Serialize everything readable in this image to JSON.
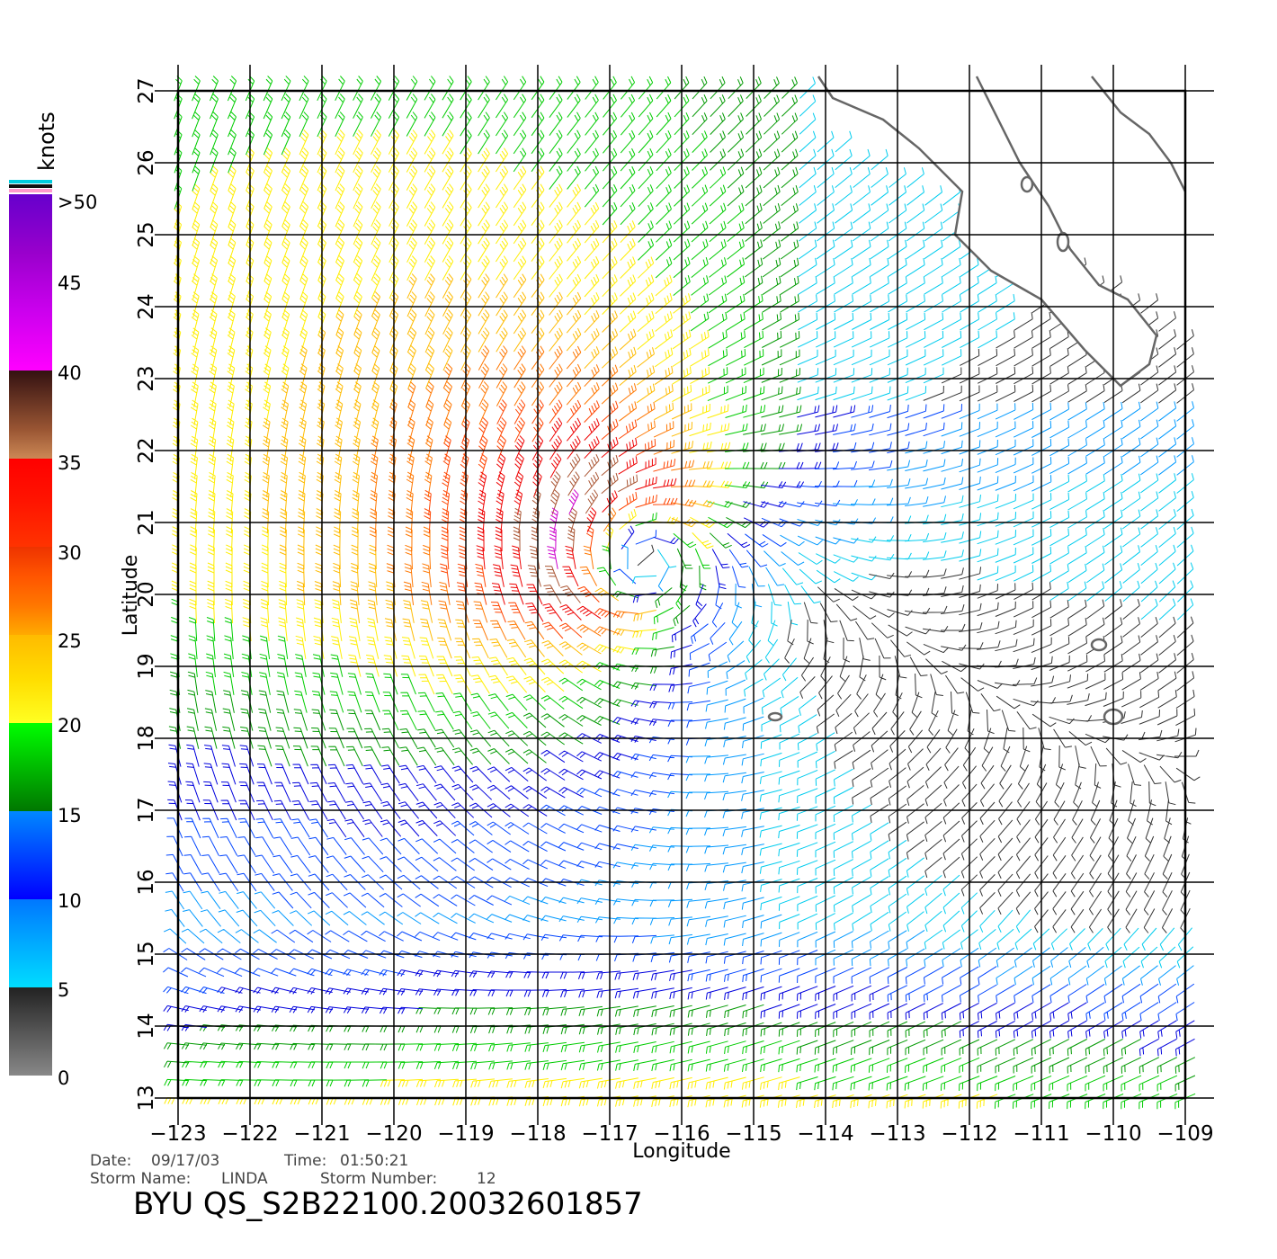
{
  "colorbar": {
    "unit_label": "knots",
    "labels": [
      ">50",
      "45",
      "40",
      "35",
      "30",
      "25",
      "20",
      "15",
      "10",
      "5",
      "0"
    ],
    "bands": [
      {
        "from": 40,
        "to": 50,
        "colors": [
          "#ff00ff",
          "#cc00ee",
          "#9900cc",
          "#6600cc"
        ]
      },
      {
        "from": 35,
        "to": 40,
        "colors": [
          "#cc8855",
          "#995533",
          "#663322",
          "#331111"
        ]
      },
      {
        "from": 30,
        "to": 35,
        "colors": [
          "#ff3300",
          "#ff1500",
          "#ff0000"
        ]
      },
      {
        "from": 25,
        "to": 30,
        "colors": [
          "#ffaa00",
          "#ff7700",
          "#ff5500",
          "#ee3300"
        ]
      },
      {
        "from": 20,
        "to": 25,
        "colors": [
          "#ffff22",
          "#ffdd00",
          "#ffbb00"
        ]
      },
      {
        "from": 15,
        "to": 20,
        "colors": [
          "#007700",
          "#00bb00",
          "#00ff00"
        ]
      },
      {
        "from": 10,
        "to": 15,
        "colors": [
          "#0000ff",
          "#0044ff",
          "#0088ff"
        ]
      },
      {
        "from": 5,
        "to": 10,
        "colors": [
          "#00ddff",
          "#00aaff",
          "#0077ff"
        ]
      },
      {
        "from": 0,
        "to": 5,
        "colors": [
          "#888888",
          "#555555",
          "#222222"
        ]
      }
    ]
  },
  "map": {
    "x_axis_title": "Longitude",
    "y_axis_title": "Latitude",
    "lon_range": [
      -123,
      -109
    ],
    "lat_range": [
      13,
      27
    ],
    "lon_ticks": [
      -123,
      -122,
      -121,
      -120,
      -119,
      -118,
      -117,
      -116,
      -115,
      -114,
      -113,
      -112,
      -111,
      -110,
      -109
    ],
    "lon_tick_labels": [
      "−123",
      "−122",
      "−121",
      "−120",
      "−119",
      "−118",
      "−117",
      "−116",
      "−115",
      "−114",
      "−113",
      "−112",
      "−111",
      "−110",
      "−109"
    ],
    "lat_ticks": [
      13,
      14,
      15,
      16,
      17,
      18,
      19,
      20,
      21,
      22,
      23,
      24,
      25,
      26,
      27
    ],
    "lat_tick_labels": [
      "13",
      "14",
      "15",
      "16",
      "17",
      "18",
      "19",
      "20",
      "21",
      "22",
      "23",
      "24",
      "25",
      "26",
      "27"
    ],
    "grid": true,
    "storm_center": {
      "lon": -116.8,
      "lat": 20.6
    },
    "wind_field": "QuikSCAT wind barbs, colored by speed in knots",
    "coastline_color": "#666666"
  },
  "footer": {
    "date_label": "Date:",
    "date_value": "09/17/03",
    "time_label": "Time:",
    "time_value": "01:50:21",
    "storm_name_label": "Storm Name:",
    "storm_name_value": "LINDA",
    "storm_number_label": "Storm Number:",
    "storm_number_value": "12",
    "product_title": "BYU QS_S2B22100.20032601857"
  }
}
